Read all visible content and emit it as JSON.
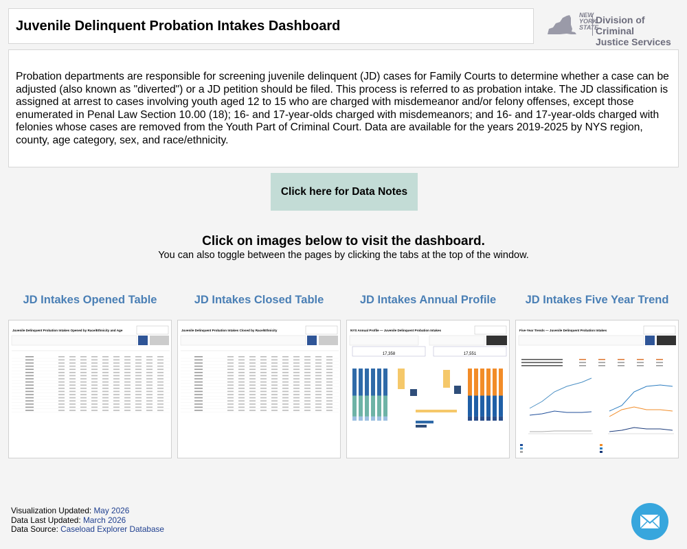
{
  "header": {
    "title": "Juvenile Delinquent Probation Intakes Dashboard"
  },
  "logo": {
    "state_line1": "NEW",
    "state_line2": "YORK",
    "state_line3": "STATE",
    "agency_line1": "Division of Criminal",
    "agency_line2": "Justice Services"
  },
  "description": "Probation departments are responsible for screening juvenile delinquent (JD) cases for Family Courts to determine whether a case can be adjusted (also known as \"diverted\") or a JD petition should be filed. This process is referred to as probation intake. The JD classification is assigned at arrest to cases involving youth aged 12 to 15 who are charged with misdemeanor and/or felony offenses, except those enumerated in Penal Law Section 10.00 (18); 16- and 17-year-olds charged with misdemeanors; and 16- and 17-year-olds charged with felonies whose cases are removed from the Youth Part of Criminal Court. Data are available for the years 2019-2025 by NYS region, county, age category, sex, and race/ethnicity.",
  "data_notes_button": "Click here for Data Notes",
  "instructions": {
    "title": "Click on images below to visit the dashboard.",
    "subtitle": "You can also toggle between the pages by clicking the tabs at the top of the window."
  },
  "tiles": [
    {
      "label": "JD Intakes Opened Table",
      "thumb_title": "Juvenile Delinquent Probation Intakes Opened by Race/Ethnicity and Age"
    },
    {
      "label": "JD Intakes Closed Table",
      "thumb_title": "Juvenile Delinquent Probation Intakes Closed by Race/Ethnicity"
    },
    {
      "label": "JD Intakes Annual Profile",
      "thumb_title": "NYS Annual Profile — Juvenile Delinquent Probation Intakes",
      "opened_total": "17,358",
      "closed_total": "17,551"
    },
    {
      "label": "JD Intakes Five Year Trend",
      "thumb_title": "Five-Year Trends — Juvenile Delinquent Probation Intakes"
    }
  ],
  "footer": {
    "viz_label": "Visualization Updated: ",
    "viz_value": "May 2026",
    "data_label": "Data Last Updated: ",
    "data_value": "March 2026",
    "source_label": "Data Source: ",
    "source_value": "Caseload Explorer Database"
  },
  "colors": {
    "accent": "#4a7fb5",
    "button": "#c3dcd6",
    "mail": "#37a6dd"
  }
}
